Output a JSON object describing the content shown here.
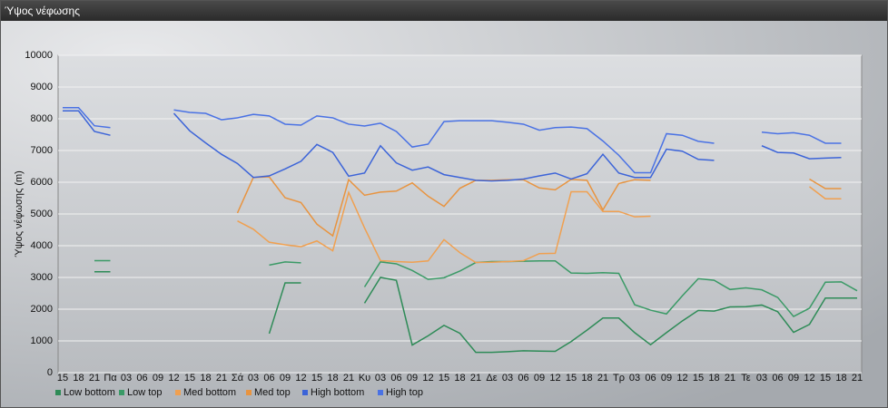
{
  "window_title": "Ύψος νέφωσης",
  "chart_data": {
    "type": "line",
    "y_label": "Ύψος νέφωσης (m)",
    "categories": [
      "15",
      "18",
      "21",
      "Πα",
      "03",
      "06",
      "09",
      "12",
      "15",
      "18",
      "21",
      "Σά",
      "03",
      "06",
      "09",
      "12",
      "15",
      "18",
      "21",
      "Κυ",
      "03",
      "06",
      "09",
      "12",
      "15",
      "18",
      "21",
      "Δε",
      "03",
      "06",
      "09",
      "12",
      "15",
      "18",
      "21",
      "Τρ",
      "03",
      "06",
      "09",
      "12",
      "15",
      "18",
      "21",
      "Τε",
      "03",
      "06",
      "09",
      "12",
      "15",
      "18",
      "21"
    ],
    "ylim": [
      0,
      10000
    ],
    "yticks": [
      0,
      1000,
      2000,
      3000,
      4000,
      5000,
      6000,
      7000,
      8000,
      9000,
      10000
    ],
    "grid": true,
    "legend": "bottom-left",
    "series": [
      {
        "name": "Low bottom",
        "color": "#2e8b57",
        "values": [
          null,
          null,
          3180,
          3180,
          null,
          null,
          null,
          null,
          null,
          null,
          null,
          null,
          null,
          1230,
          2830,
          2830,
          null,
          null,
          null,
          2190,
          3000,
          2910,
          870,
          1160,
          1490,
          1240,
          640,
          640,
          660,
          690,
          680,
          670,
          980,
          1340,
          1720,
          1720,
          1260,
          880,
          1260,
          1630,
          1960,
          1940,
          2070,
          2080,
          2130,
          1920,
          1270,
          1520,
          2350,
          2350,
          2350
        ]
      },
      {
        "name": "Low top",
        "color": "#3a9a66",
        "values": [
          null,
          null,
          3530,
          3530,
          null,
          null,
          null,
          null,
          null,
          null,
          null,
          null,
          null,
          3390,
          3490,
          3460,
          null,
          null,
          null,
          2700,
          3490,
          3430,
          3220,
          2940,
          2990,
          3200,
          3470,
          3500,
          3500,
          3510,
          3520,
          3520,
          3140,
          3130,
          3150,
          3130,
          2140,
          1970,
          1850,
          2420,
          2960,
          2910,
          2620,
          2670,
          2610,
          2370,
          1770,
          2030,
          2850,
          2860,
          2580
        ]
      },
      {
        "name": "Med bottom",
        "color": "#f0a050",
        "values": [
          null,
          null,
          null,
          null,
          null,
          null,
          null,
          null,
          null,
          null,
          null,
          4780,
          4520,
          4110,
          4030,
          3970,
          4150,
          3840,
          5680,
          4560,
          3530,
          3500,
          3480,
          3520,
          4190,
          3780,
          3470,
          3480,
          3500,
          3530,
          3750,
          3760,
          5700,
          5700,
          5080,
          5080,
          4910,
          4930,
          null,
          null,
          null,
          null,
          null,
          null,
          null,
          null,
          null,
          5860,
          5480,
          5480,
          null
        ]
      },
      {
        "name": "Med top",
        "color": "#e89440",
        "values": [
          null,
          null,
          null,
          null,
          null,
          null,
          null,
          null,
          null,
          null,
          null,
          5030,
          6150,
          6170,
          5510,
          5360,
          4680,
          4310,
          6080,
          5590,
          5690,
          5720,
          5980,
          5560,
          5240,
          5810,
          6060,
          6060,
          6080,
          6080,
          5820,
          5760,
          6090,
          6060,
          5130,
          5960,
          6080,
          6060,
          null,
          null,
          null,
          null,
          null,
          null,
          null,
          null,
          null,
          6100,
          5800,
          5800,
          null
        ]
      },
      {
        "name": "High bottom",
        "color": "#3c64d8",
        "values": [
          8250,
          8250,
          7600,
          7480,
          null,
          null,
          null,
          8170,
          7620,
          7240,
          6880,
          6590,
          6150,
          6200,
          6420,
          6660,
          7190,
          6940,
          6190,
          6290,
          7150,
          6610,
          6380,
          6480,
          6240,
          6150,
          6060,
          6040,
          6060,
          6100,
          6200,
          6290,
          6100,
          6270,
          6880,
          6290,
          6150,
          6150,
          7040,
          6980,
          6720,
          6690,
          null,
          null,
          7150,
          6940,
          6920,
          6740,
          6760,
          6780,
          null
        ]
      },
      {
        "name": "High top",
        "color": "#4a72e4",
        "values": [
          8350,
          8350,
          7780,
          7720,
          null,
          null,
          null,
          8280,
          8200,
          8170,
          7970,
          8030,
          8140,
          8090,
          7830,
          7800,
          8090,
          8030,
          7830,
          7770,
          7860,
          7600,
          7110,
          7200,
          7910,
          7940,
          7940,
          7940,
          7890,
          7830,
          7640,
          7720,
          7740,
          7690,
          7300,
          6850,
          6300,
          6300,
          7530,
          7480,
          7290,
          7230,
          null,
          null,
          7580,
          7530,
          7560,
          7480,
          7230,
          7230,
          null
        ]
      }
    ]
  }
}
